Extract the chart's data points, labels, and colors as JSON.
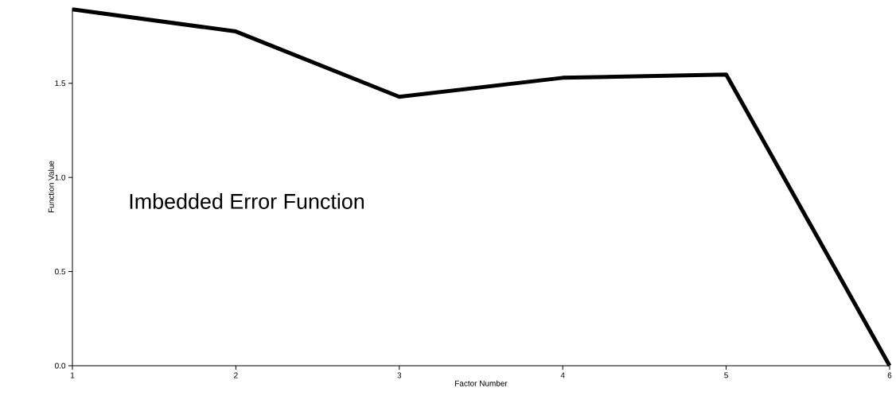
{
  "chart_data": {
    "type": "line",
    "xlabel": "Factor Number",
    "ylabel": "Function Value",
    "annotations": [
      "Imbedded Error Function"
    ],
    "x": [
      1,
      2,
      3,
      4,
      5,
      6
    ],
    "series": [
      {
        "color": "#000000",
        "values": [
          1.893,
          1.775,
          1.428,
          1.529,
          1.546,
          0
        ]
      }
    ],
    "xlim": [
      1,
      6
    ],
    "ylim": [
      0,
      1.9
    ],
    "xticks": [
      1,
      2,
      3,
      4,
      5,
      6
    ],
    "yticks": [
      {
        "value": 0,
        "label": "0.0"
      },
      0.5,
      {
        "value": 1,
        "label": "1.0"
      },
      1.5
    ],
    "grid": false,
    "marker": "none",
    "line_style": "solid"
  }
}
